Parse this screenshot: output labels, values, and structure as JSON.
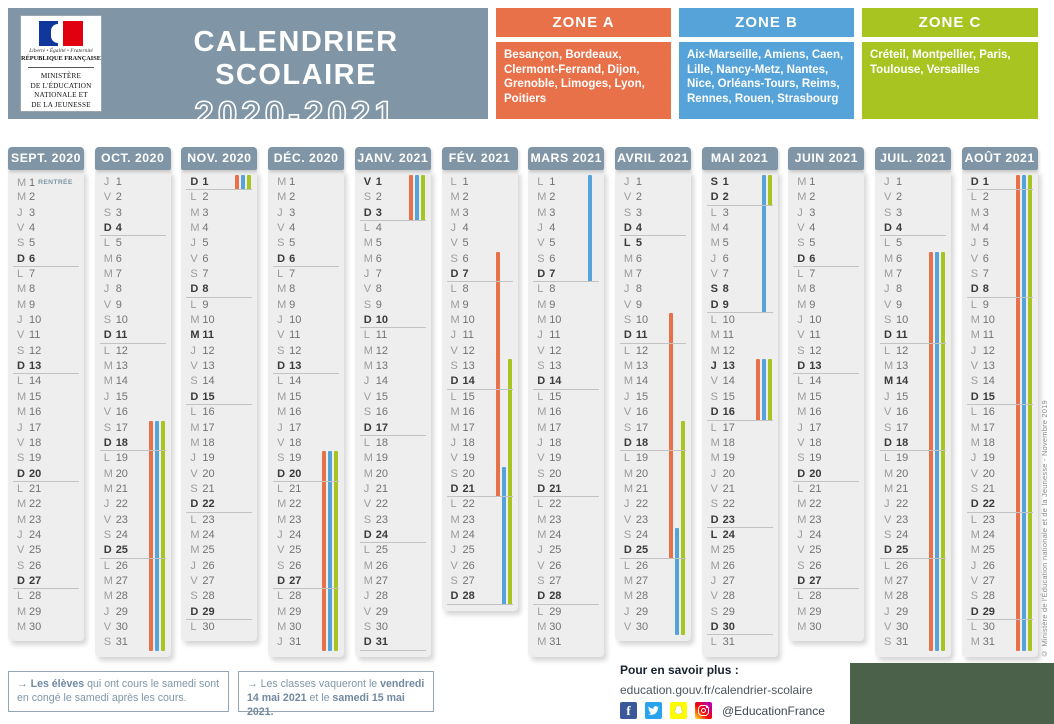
{
  "header": {
    "motto": "Liberté • Égalité • Fraternité",
    "republic": "RÉPUBLIQUE FRANÇAISE",
    "ministry": "MINISTÈRE\nDE L'ÉDUCATION\nNATIONALE ET\nDE LA JEUNESSE",
    "title_line1": "CALENDRIER SCOLAIRE",
    "title_line2": "2020-2021"
  },
  "zones": [
    {
      "label": "ZONE A",
      "color": "#e8714a",
      "cities": "Besançon, Bordeaux, Clermont-Ferrand, Dijon, Grenoble, Limoges, Lyon, Poitiers"
    },
    {
      "label": "ZONE B",
      "color": "#55a3d9",
      "cities": "Aix-Marseille, Amiens, Caen, Lille, Nancy-Metz, Nantes, Nice, Orléans-Tours, Reims, Rennes, Rouen, Strasbourg"
    },
    {
      "label": "ZONE C",
      "color": "#a8c420",
      "cities": "Créteil, Montpellier, Paris, Toulouse, Versailles"
    }
  ],
  "weekday_letters": [
    "L",
    "M",
    "M",
    "J",
    "V",
    "S",
    "D"
  ],
  "months": [
    {
      "label": "SEPT. 2020",
      "days": 30,
      "start": 1,
      "bold_extra": [],
      "notes": {
        "1": "RENTRÉE"
      },
      "bars": []
    },
    {
      "label": "OCT. 2020",
      "days": 31,
      "start": 3,
      "bold_extra": [],
      "bars": [
        {
          "zone": "A",
          "from": 17,
          "to": 31
        },
        {
          "zone": "B",
          "from": 17,
          "to": 31
        },
        {
          "zone": "C",
          "from": 17,
          "to": 31
        }
      ]
    },
    {
      "label": "NOV. 2020",
      "days": 30,
      "start": 6,
      "bold_extra": [
        11
      ],
      "bars": [
        {
          "zone": "A",
          "from": 1,
          "to": 1
        },
        {
          "zone": "B",
          "from": 1,
          "to": 1
        },
        {
          "zone": "C",
          "from": 1,
          "to": 1
        }
      ]
    },
    {
      "label": "DÉC. 2020",
      "days": 31,
      "start": 1,
      "bold_extra": [],
      "bars": [
        {
          "zone": "A",
          "from": 19,
          "to": 31
        },
        {
          "zone": "B",
          "from": 19,
          "to": 31
        },
        {
          "zone": "C",
          "from": 19,
          "to": 31
        }
      ]
    },
    {
      "label": "JANV. 2021",
      "days": 31,
      "start": 4,
      "bold_extra": [
        1
      ],
      "bars": [
        {
          "zone": "A",
          "from": 1,
          "to": 3
        },
        {
          "zone": "B",
          "from": 1,
          "to": 3
        },
        {
          "zone": "C",
          "from": 1,
          "to": 3
        }
      ]
    },
    {
      "label": "FÉV. 2021",
      "days": 28,
      "start": 0,
      "bold_extra": [],
      "bars": [
        {
          "zone": "A",
          "from": 6,
          "to": 21
        },
        {
          "zone": "C",
          "from": 13,
          "to": 28
        },
        {
          "zone": "B",
          "from": 20,
          "to": 28
        }
      ]
    },
    {
      "label": "MARS 2021",
      "days": 31,
      "start": 0,
      "bold_extra": [],
      "bars": [
        {
          "zone": "B",
          "from": 1,
          "to": 7
        }
      ]
    },
    {
      "label": "AVRIL 2021",
      "days": 30,
      "start": 3,
      "bold_extra": [
        5
      ],
      "bars": [
        {
          "zone": "A",
          "from": 10,
          "to": 25
        },
        {
          "zone": "C",
          "from": 17,
          "to": 30
        },
        {
          "zone": "B",
          "from": 24,
          "to": 30
        }
      ]
    },
    {
      "label": "MAI 2021",
      "days": 31,
      "start": 5,
      "bold_extra": [
        1,
        8,
        13,
        24
      ],
      "bars": [
        {
          "zone": "B",
          "from": 1,
          "to": 9
        },
        {
          "zone": "C",
          "from": 1,
          "to": 2
        },
        {
          "zone": "A",
          "from": 13,
          "to": 16
        },
        {
          "zone": "B",
          "from": 13,
          "to": 16
        },
        {
          "zone": "C",
          "from": 13,
          "to": 16
        }
      ]
    },
    {
      "label": "JUIN 2021",
      "days": 30,
      "start": 1,
      "bold_extra": [],
      "bars": []
    },
    {
      "label": "JUIL. 2021",
      "days": 31,
      "start": 3,
      "bold_extra": [
        14
      ],
      "bars": [
        {
          "zone": "A",
          "from": 6,
          "to": 31
        },
        {
          "zone": "B",
          "from": 6,
          "to": 31
        },
        {
          "zone": "C",
          "from": 6,
          "to": 31
        }
      ]
    },
    {
      "label": "AOÛT 2021",
      "days": 31,
      "start": 6,
      "bold_extra": [
        15
      ],
      "bars": [
        {
          "zone": "A",
          "from": 1,
          "to": 31
        },
        {
          "zone": "B",
          "from": 1,
          "to": 31
        },
        {
          "zone": "C",
          "from": 1,
          "to": 31
        }
      ]
    }
  ],
  "footer": {
    "arrow": "→",
    "note1_bold": "Les élèves",
    "note1_rest": " qui ont cours le samedi sont en congé le samedi après les cours.",
    "note2_p1": "Les classes vaqueront le ",
    "note2_b1": "vendredi 14 mai 2021",
    "note2_p2": " et le ",
    "note2_b2": "samedi 15 mai 2021.",
    "more_label": "Pour en savoir plus :",
    "more_url": "education.gouv.fr/calendrier-scolaire",
    "facebook_glyph": "f",
    "social_handle": "@EducationFrance"
  },
  "copyright": "© Ministère de l'Éducation nationale et de la Jeunesse - Novembre 2019",
  "colors": {
    "zone_a": "#e8714a",
    "zone_b": "#55a3d9",
    "zone_c": "#a8c420",
    "banner_bg": "#8096a6",
    "artifact_green": "#4c614a"
  }
}
